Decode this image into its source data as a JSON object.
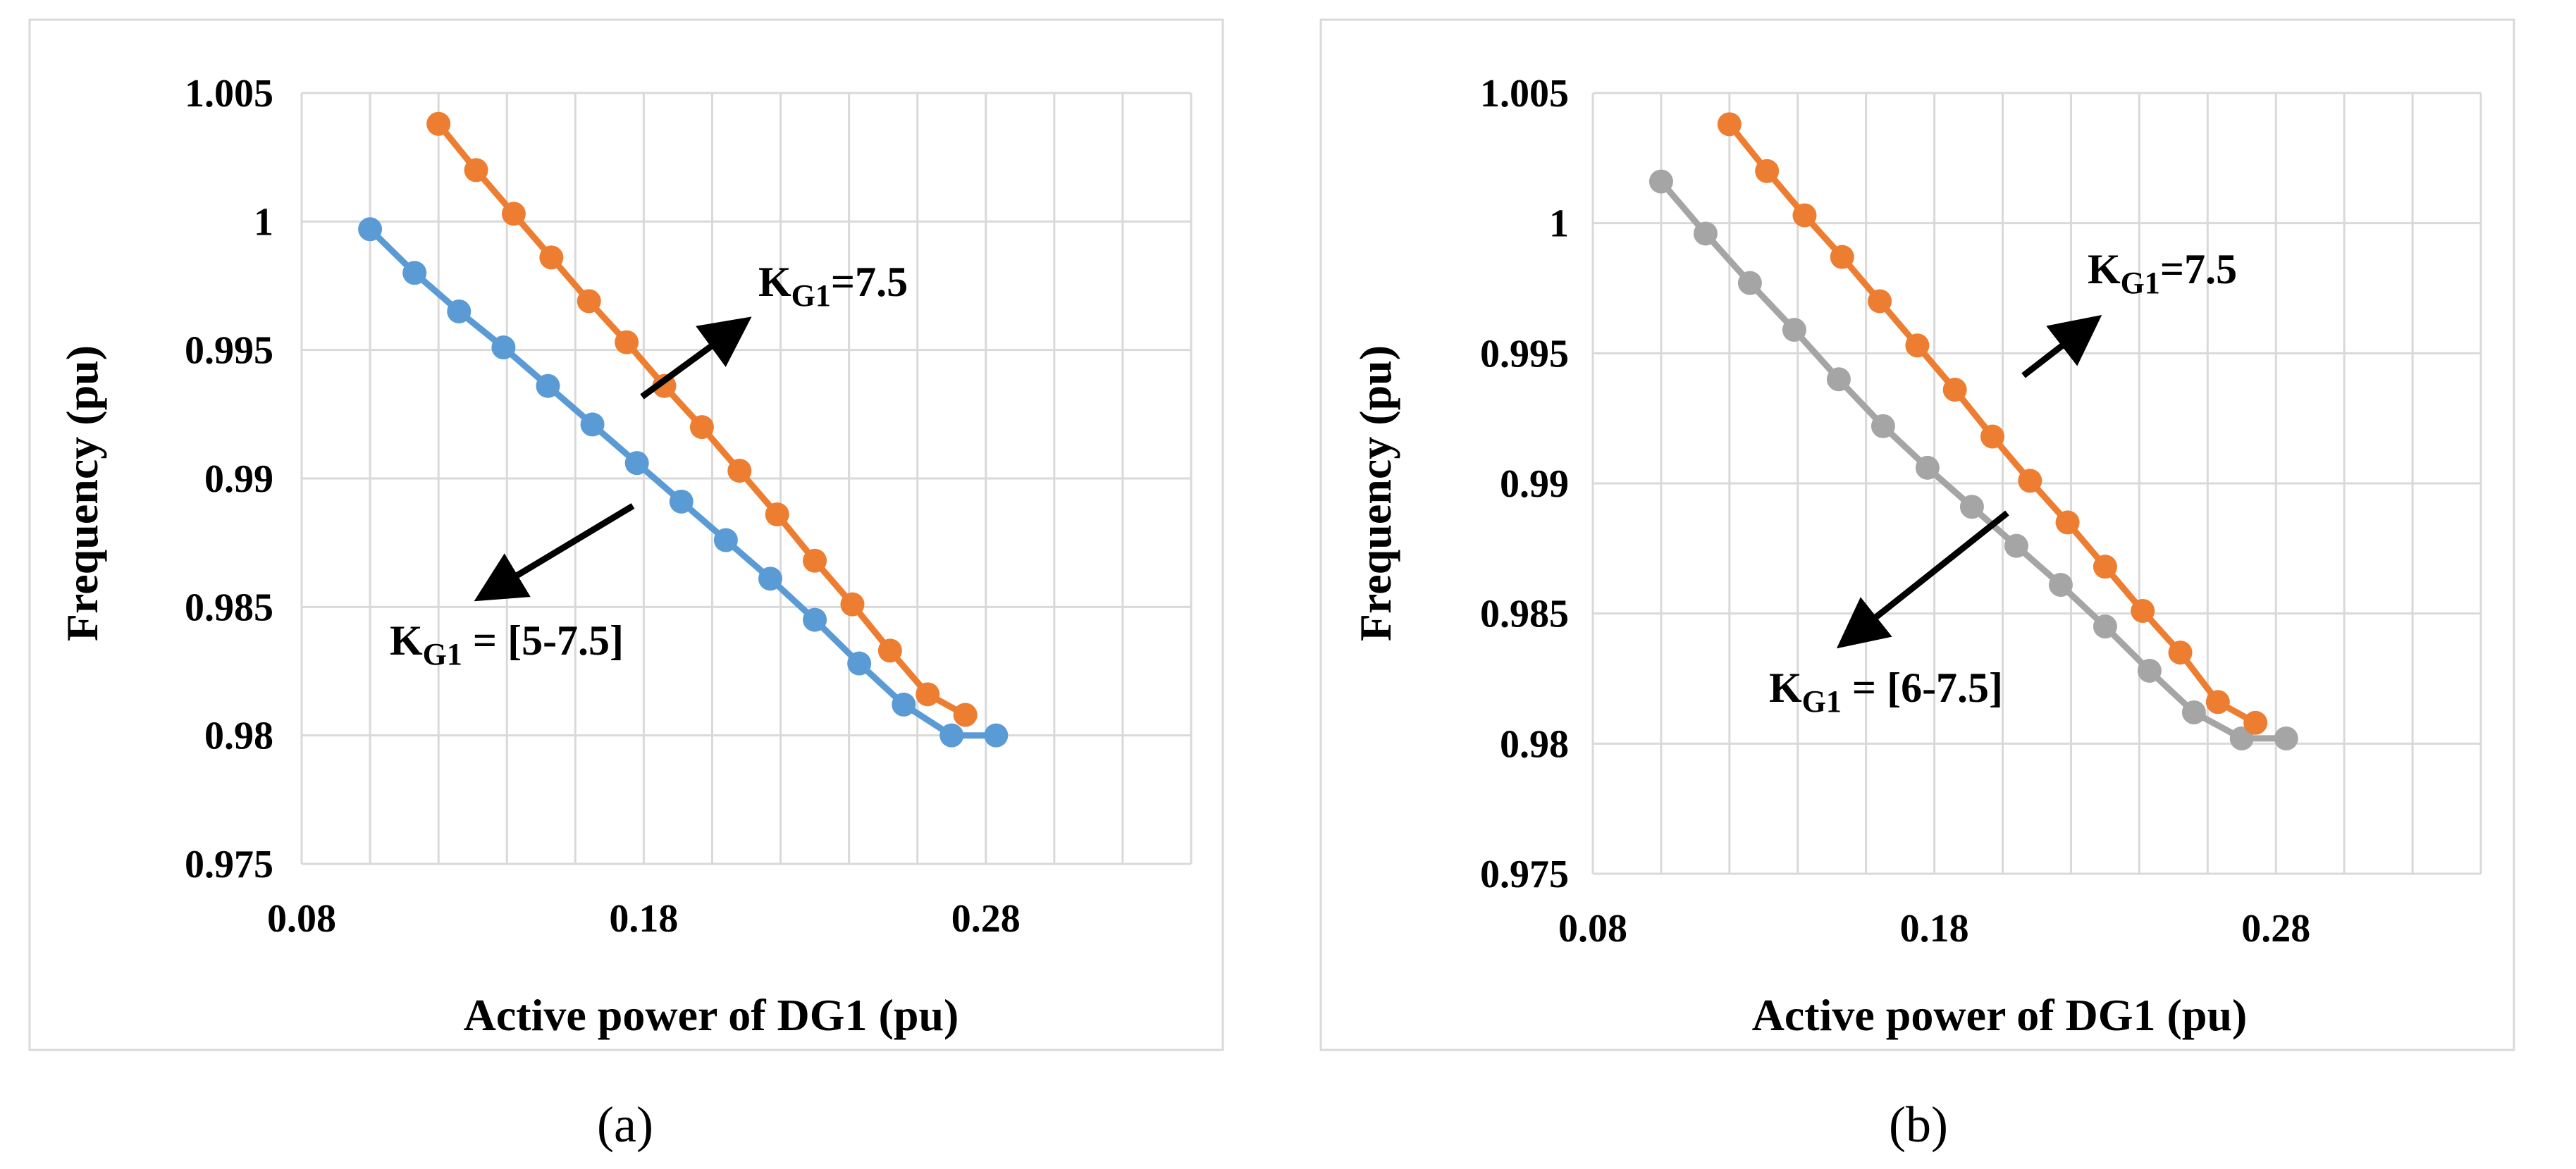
{
  "chart_data": [
    {
      "type": "line",
      "label": "(a)",
      "xlabel": "Active power of DG1 (pu)",
      "ylabel": "Frequency (pu)",
      "xlim": [
        0.08,
        0.34
      ],
      "ylim": [
        0.975,
        1.005
      ],
      "xticks": [
        "0.08",
        "0.18",
        "0.28"
      ],
      "yticks": [
        "0.975",
        "0.98",
        "0.985",
        "0.99",
        "0.995",
        "1",
        "1.005"
      ],
      "grid": true,
      "colors": {
        "blue": "#5b9bd5",
        "orange": "#ed7d31"
      },
      "series": [
        {
          "color": "#5b9bd5",
          "points": [
            [
              0.1,
              0.9997
            ],
            [
              0.113,
              0.998
            ],
            [
              0.126,
              0.9965
            ],
            [
              0.139,
              0.9951
            ],
            [
              0.152,
              0.9936
            ],
            [
              0.165,
              0.9921
            ],
            [
              0.178,
              0.9906
            ],
            [
              0.191,
              0.9891
            ],
            [
              0.204,
              0.9876
            ],
            [
              0.217,
              0.9861
            ],
            [
              0.23,
              0.9845
            ],
            [
              0.243,
              0.9828
            ],
            [
              0.256,
              0.9812
            ],
            [
              0.27,
              0.98
            ],
            [
              0.283,
              0.98
            ]
          ]
        },
        {
          "color": "#ed7d31",
          "points": [
            [
              0.12,
              1.0038
            ],
            [
              0.131,
              1.002
            ],
            [
              0.142,
              1.0003
            ],
            [
              0.153,
              0.9986
            ],
            [
              0.164,
              0.9969
            ],
            [
              0.175,
              0.9953
            ],
            [
              0.186,
              0.9936
            ],
            [
              0.197,
              0.992
            ],
            [
              0.208,
              0.9903
            ],
            [
              0.219,
              0.9886
            ],
            [
              0.23,
              0.9868
            ],
            [
              0.241,
              0.9851
            ],
            [
              0.252,
              0.9833
            ],
            [
              0.263,
              0.9816
            ],
            [
              0.274,
              0.9808
            ]
          ]
        }
      ],
      "annotations": [
        {
          "main": "K",
          "sub": "G1",
          "rest": "=7.5"
        },
        {
          "main": "K",
          "sub": "G1",
          "rest": " = [5-7.5]"
        }
      ]
    },
    {
      "type": "line",
      "label": "(b)",
      "xlabel": "Active power of DG1 (pu)",
      "ylabel": "Frequency (pu)",
      "xlim": [
        0.08,
        0.34
      ],
      "ylim": [
        0.975,
        1.005
      ],
      "xticks": [
        "0.08",
        "0.18",
        "0.28"
      ],
      "yticks": [
        "0.975",
        "0.98",
        "0.985",
        "0.99",
        "0.995",
        "1",
        "1.005"
      ],
      "grid": true,
      "colors": {
        "gray": "#a5a5a5",
        "orange": "#ed7d31"
      },
      "series": [
        {
          "color": "#a5a5a5",
          "points": [
            [
              0.1,
              1.0016
            ],
            [
              0.113,
              0.9996
            ],
            [
              0.126,
              0.9977
            ],
            [
              0.139,
              0.9959
            ],
            [
              0.152,
              0.994
            ],
            [
              0.165,
              0.9922
            ],
            [
              0.178,
              0.9906
            ],
            [
              0.191,
              0.9891
            ],
            [
              0.204,
              0.9876
            ],
            [
              0.217,
              0.9861
            ],
            [
              0.23,
              0.9845
            ],
            [
              0.243,
              0.9828
            ],
            [
              0.256,
              0.9812
            ],
            [
              0.27,
              0.9802
            ],
            [
              0.283,
              0.9802
            ]
          ]
        },
        {
          "color": "#ed7d31",
          "points": [
            [
              0.12,
              1.0038
            ],
            [
              0.131,
              1.002
            ],
            [
              0.142,
              1.0003
            ],
            [
              0.153,
              0.9987
            ],
            [
              0.164,
              0.997
            ],
            [
              0.175,
              0.9953
            ],
            [
              0.186,
              0.9936
            ],
            [
              0.197,
              0.9918
            ],
            [
              0.208,
              0.9901
            ],
            [
              0.219,
              0.9885
            ],
            [
              0.23,
              0.9868
            ],
            [
              0.241,
              0.9851
            ],
            [
              0.252,
              0.9835
            ],
            [
              0.263,
              0.9816
            ],
            [
              0.274,
              0.9808
            ]
          ]
        }
      ],
      "annotations": [
        {
          "main": "K",
          "sub": "G1",
          "rest": "=7.5"
        },
        {
          "main": "K",
          "sub": "G1",
          "rest": " = [6-7.5]"
        }
      ]
    }
  ]
}
